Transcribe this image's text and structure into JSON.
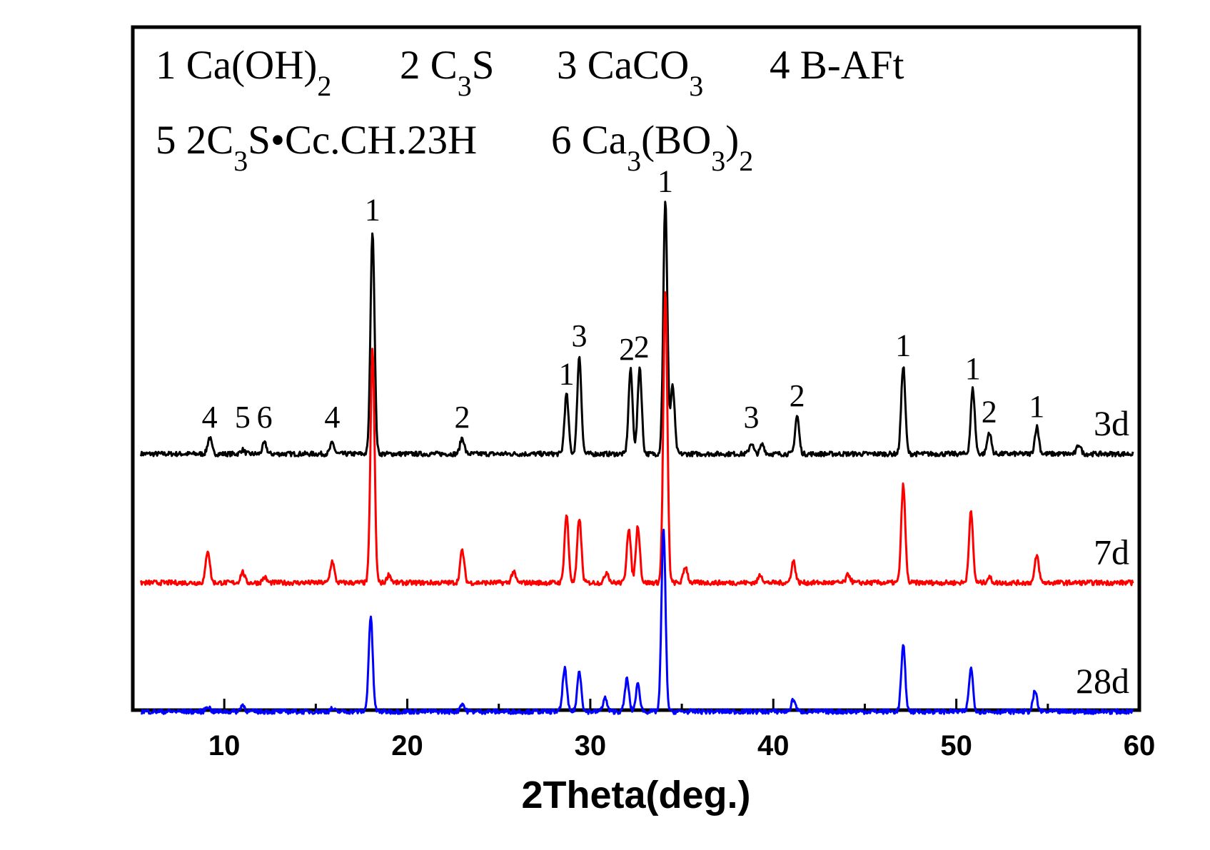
{
  "legend": {
    "items": [
      {
        "num": "1",
        "formula": [
          {
            "t": "Ca(OH)"
          },
          {
            "t": "2",
            "sub": true
          }
        ]
      },
      {
        "num": "2",
        "formula": [
          {
            "t": "C"
          },
          {
            "t": "3",
            "sub": true
          },
          {
            "t": "S"
          }
        ]
      },
      {
        "num": "3",
        "formula": [
          {
            "t": "CaCO"
          },
          {
            "t": "3",
            "sub": true
          }
        ]
      },
      {
        "num": "4",
        "formula": [
          {
            "t": "B-AFt"
          }
        ]
      },
      {
        "num": "5",
        "formula": [
          {
            "t": "2C"
          },
          {
            "t": "3",
            "sub": true
          },
          {
            "t": "S•Cc.CH.23H"
          }
        ]
      },
      {
        "num": "6",
        "formula": [
          {
            "t": "Ca"
          },
          {
            "t": "3",
            "sub": true
          },
          {
            "t": "(BO"
          },
          {
            "t": "3",
            "sub": true
          },
          {
            "t": ")"
          },
          {
            "t": "2",
            "sub": true
          }
        ]
      }
    ]
  },
  "chart_data": {
    "type": "line",
    "title": "",
    "xlabel": "2Theta(deg.)",
    "ylabel": "",
    "xlim": [
      5,
      60
    ],
    "x_ticks": [
      10,
      20,
      30,
      40,
      50,
      60
    ],
    "grid": false,
    "y_ticks": false,
    "series": [
      {
        "name": "3d",
        "color": "#000000",
        "baseline": 0.0,
        "peaks": [
          {
            "x": 9.2,
            "h": 0.012
          },
          {
            "x": 11.0,
            "h": 0.003
          },
          {
            "x": 12.2,
            "h": 0.008
          },
          {
            "x": 15.9,
            "h": 0.008
          },
          {
            "x": 18.1,
            "h": 0.165
          },
          {
            "x": 23.0,
            "h": 0.012
          },
          {
            "x": 28.7,
            "h": 0.044
          },
          {
            "x": 29.4,
            "h": 0.072
          },
          {
            "x": 32.2,
            "h": 0.062
          },
          {
            "x": 32.7,
            "h": 0.064
          },
          {
            "x": 34.1,
            "h": 0.186
          },
          {
            "x": 34.5,
            "h": 0.05
          },
          {
            "x": 38.8,
            "h": 0.008
          },
          {
            "x": 39.4,
            "h": 0.007
          },
          {
            "x": 41.3,
            "h": 0.028
          },
          {
            "x": 47.1,
            "h": 0.065
          },
          {
            "x": 50.9,
            "h": 0.048
          },
          {
            "x": 51.8,
            "h": 0.016
          },
          {
            "x": 54.4,
            "h": 0.02
          },
          {
            "x": 56.7,
            "h": 0.007
          }
        ],
        "peak_labels": [
          {
            "x": 9.2,
            "h": 0.012,
            "text": "4"
          },
          {
            "x": 11.0,
            "h": 0.012,
            "text": "5"
          },
          {
            "x": 12.2,
            "h": 0.012,
            "text": "6"
          },
          {
            "x": 15.9,
            "h": 0.012,
            "text": "4"
          },
          {
            "x": 18.1,
            "h": 0.165,
            "text": "1"
          },
          {
            "x": 23.0,
            "h": 0.012,
            "text": "2"
          },
          {
            "x": 28.7,
            "h": 0.044,
            "text": "1"
          },
          {
            "x": 29.4,
            "h": 0.072,
            "text": "3"
          },
          {
            "x": 32.0,
            "h": 0.062,
            "text": "2"
          },
          {
            "x": 32.8,
            "h": 0.064,
            "text": "2"
          },
          {
            "x": 34.1,
            "h": 0.186,
            "text": "1"
          },
          {
            "x": 38.8,
            "h": 0.012,
            "text": "3"
          },
          {
            "x": 41.3,
            "h": 0.028,
            "text": "2"
          },
          {
            "x": 47.1,
            "h": 0.065,
            "text": "1"
          },
          {
            "x": 50.9,
            "h": 0.048,
            "text": "1"
          },
          {
            "x": 51.8,
            "h": 0.016,
            "text": "2"
          },
          {
            "x": 54.4,
            "h": 0.02,
            "text": "1"
          }
        ]
      },
      {
        "name": "7d",
        "color": "#ff0000",
        "baseline": -0.095,
        "peaks": [
          {
            "x": 9.1,
            "h": 0.024
          },
          {
            "x": 11.0,
            "h": 0.008
          },
          {
            "x": 12.2,
            "h": 0.004
          },
          {
            "x": 15.9,
            "h": 0.016
          },
          {
            "x": 18.1,
            "h": 0.172
          },
          {
            "x": 19.0,
            "h": 0.006
          },
          {
            "x": 23.0,
            "h": 0.024
          },
          {
            "x": 25.8,
            "h": 0.008
          },
          {
            "x": 28.7,
            "h": 0.05
          },
          {
            "x": 29.4,
            "h": 0.048
          },
          {
            "x": 30.9,
            "h": 0.008
          },
          {
            "x": 32.1,
            "h": 0.04
          },
          {
            "x": 32.6,
            "h": 0.042
          },
          {
            "x": 34.1,
            "h": 0.215
          },
          {
            "x": 35.2,
            "h": 0.012
          },
          {
            "x": 39.3,
            "h": 0.006
          },
          {
            "x": 41.1,
            "h": 0.016
          },
          {
            "x": 44.1,
            "h": 0.006
          },
          {
            "x": 47.1,
            "h": 0.072
          },
          {
            "x": 50.8,
            "h": 0.052
          },
          {
            "x": 51.8,
            "h": 0.004
          },
          {
            "x": 54.4,
            "h": 0.02
          }
        ]
      },
      {
        "name": "28d",
        "color": "#0000ff",
        "baseline": -0.19,
        "peaks": [
          {
            "x": 9.1,
            "h": 0.004
          },
          {
            "x": 11.0,
            "h": 0.005
          },
          {
            "x": 15.9,
            "h": 0.002
          },
          {
            "x": 18.0,
            "h": 0.07
          },
          {
            "x": 23.0,
            "h": 0.006
          },
          {
            "x": 28.6,
            "h": 0.032
          },
          {
            "x": 29.4,
            "h": 0.03
          },
          {
            "x": 30.8,
            "h": 0.01
          },
          {
            "x": 32.0,
            "h": 0.024
          },
          {
            "x": 32.6,
            "h": 0.02
          },
          {
            "x": 34.0,
            "h": 0.135
          },
          {
            "x": 41.1,
            "h": 0.009
          },
          {
            "x": 47.1,
            "h": 0.048
          },
          {
            "x": 50.8,
            "h": 0.032
          },
          {
            "x": 54.3,
            "h": 0.015
          }
        ]
      }
    ]
  }
}
